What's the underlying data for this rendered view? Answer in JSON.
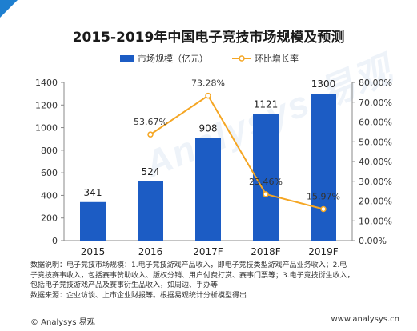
{
  "colors": {
    "bar": "#1c5cc4",
    "line": "#f5a623",
    "corner_mark": "#1e7fd0",
    "text": "#222222"
  },
  "chart_data": {
    "type": "bar+line",
    "title": "2015-2019年中国电子竞技市场规模及预测",
    "categories": [
      "2015",
      "2016",
      "2017F",
      "2018F",
      "2019F"
    ],
    "series": [
      {
        "name": "市场规模（亿元）",
        "type": "bar",
        "axis": "left",
        "values": [
          341,
          524,
          908,
          1121,
          1300
        ],
        "labels": [
          "341",
          "524",
          "908",
          "1121",
          "1300"
        ]
      },
      {
        "name": "环比增长率",
        "type": "line",
        "axis": "right",
        "values": [
          null,
          53.67,
          73.28,
          23.46,
          15.97
        ],
        "labels": [
          "",
          "53.67%",
          "73.28%",
          "23.46%",
          "15.97%"
        ]
      }
    ],
    "y_left": {
      "range": [
        0,
        1400
      ],
      "ticks": [
        "0",
        "200",
        "400",
        "600",
        "800",
        "1000",
        "1200",
        "1400"
      ]
    },
    "y_right": {
      "range": [
        0,
        80
      ],
      "ticks": [
        "0.00%",
        "10.00%",
        "20.00%",
        "30.00%",
        "40.00%",
        "50.00%",
        "60.00%",
        "70.00%",
        "80.00%"
      ]
    },
    "grid": false,
    "legend_position": "top"
  },
  "notes": {
    "line1": "数据说明：电子竞技市场规模：1.电子竞技游戏产品收入，即电子竞技类型游戏产品业务收入；2.电",
    "line2": "子竞技赛事收入，包括赛事赞助收入、版权分销、用户付费打赏、赛事门票等；3.电子竞技衍生收入，",
    "line3": "包括电子竞技游戏产品及赛事衍生品收入，如周边、手办等",
    "line4": "数据来源：企业访谈、上市企业财报等。根据易观统计分析模型得出"
  },
  "footer": {
    "copyright": "© Analysys 易观",
    "site": "www.analysys.cn"
  },
  "watermark_text": "Analysys 易观"
}
